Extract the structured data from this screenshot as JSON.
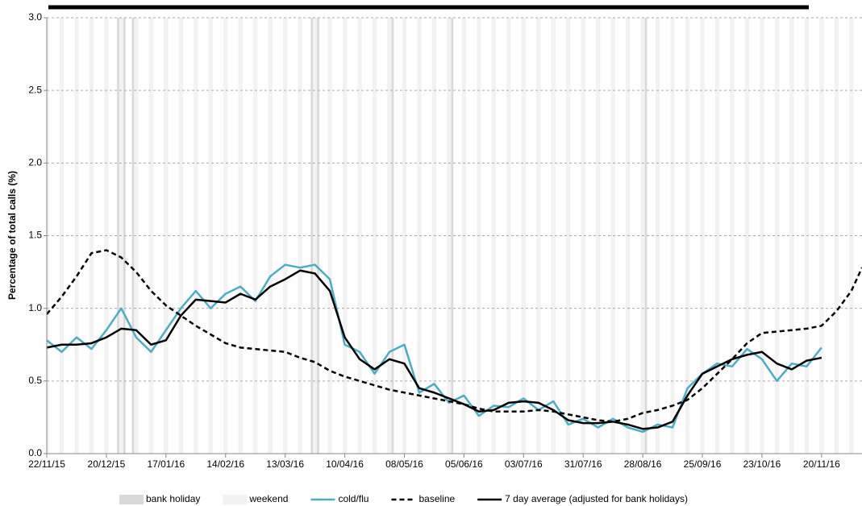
{
  "chart_data": {
    "type": "line",
    "y_label": "Percentage of total calls (%)",
    "x": [
      "22/11/15",
      "29/11/15",
      "06/12/15",
      "13/12/15",
      "20/12/15",
      "27/12/15",
      "03/01/16",
      "10/01/16",
      "17/01/16",
      "24/01/16",
      "31/01/16",
      "07/02/16",
      "14/02/16",
      "21/02/16",
      "28/02/16",
      "06/03/16",
      "13/03/16",
      "20/03/16",
      "27/03/16",
      "03/04/16",
      "10/04/16",
      "17/04/16",
      "24/04/16",
      "01/05/16",
      "08/05/16",
      "15/05/16",
      "22/05/16",
      "29/05/16",
      "05/06/16",
      "12/06/16",
      "19/06/16",
      "26/06/16",
      "03/07/16",
      "10/07/16",
      "17/07/16",
      "24/07/16",
      "31/07/16",
      "07/08/16",
      "14/08/16",
      "21/08/16",
      "28/08/16",
      "04/09/16",
      "11/09/16",
      "18/09/16",
      "25/09/16",
      "02/10/16",
      "09/10/16",
      "16/10/16",
      "23/10/16",
      "30/10/16",
      "06/11/16",
      "13/11/16",
      "20/11/16",
      "27/11/16",
      "04/12/16",
      "09/12/16"
    ],
    "series": [
      {
        "name": "cold/flu",
        "color": "#4bacc6",
        "style": "solid",
        "width": 2.5,
        "values": [
          0.78,
          0.7,
          0.8,
          0.72,
          0.85,
          1.0,
          0.8,
          0.7,
          0.85,
          1.0,
          1.12,
          1.0,
          1.1,
          1.15,
          1.05,
          1.22,
          1.3,
          1.28,
          1.3,
          1.2,
          0.75,
          0.7,
          0.55,
          0.7,
          0.75,
          0.42,
          0.48,
          0.35,
          0.4,
          0.26,
          0.33,
          0.32,
          0.38,
          0.3,
          0.36,
          0.2,
          0.24,
          0.18,
          0.24,
          0.18,
          0.15,
          0.2,
          0.18,
          0.45,
          0.55,
          0.62,
          0.6,
          0.72,
          0.65,
          0.5,
          0.62,
          0.6,
          0.73,
          null,
          null,
          null
        ]
      },
      {
        "name": "baseline",
        "color": "#000000",
        "style": "dashed",
        "width": 2.5,
        "values": [
          0.96,
          1.08,
          1.22,
          1.38,
          1.4,
          1.35,
          1.25,
          1.12,
          1.02,
          0.95,
          0.88,
          0.82,
          0.76,
          0.73,
          0.72,
          0.71,
          0.7,
          0.66,
          0.63,
          0.57,
          0.53,
          0.5,
          0.47,
          0.44,
          0.42,
          0.4,
          0.38,
          0.36,
          0.34,
          0.31,
          0.29,
          0.29,
          0.29,
          0.3,
          0.29,
          0.27,
          0.25,
          0.23,
          0.22,
          0.24,
          0.28,
          0.3,
          0.33,
          0.37,
          0.45,
          0.55,
          0.65,
          0.76,
          0.83,
          0.84,
          0.85,
          0.86,
          0.88,
          0.98,
          1.12,
          1.28
        ]
      },
      {
        "name": "7 day average (adjusted for bank holidays)",
        "color": "#000000",
        "style": "solid",
        "width": 2.5,
        "values": [
          0.73,
          0.75,
          0.75,
          0.76,
          0.8,
          0.86,
          0.85,
          0.75,
          0.78,
          0.95,
          1.06,
          1.05,
          1.04,
          1.1,
          1.06,
          1.15,
          1.2,
          1.26,
          1.24,
          1.12,
          0.8,
          0.65,
          0.58,
          0.65,
          0.62,
          0.45,
          0.42,
          0.38,
          0.34,
          0.29,
          0.3,
          0.35,
          0.36,
          0.35,
          0.3,
          0.23,
          0.21,
          0.21,
          0.22,
          0.2,
          0.17,
          0.18,
          0.22,
          0.4,
          0.55,
          0.6,
          0.65,
          0.68,
          0.7,
          0.62,
          0.58,
          0.64,
          0.66,
          null,
          null,
          null
        ]
      }
    ],
    "bank_holidays": {
      "name": "bank holiday",
      "color": "#d9d9d9",
      "dates": [
        "25/12/15",
        "28/12/15",
        "01/01/16",
        "25/03/16",
        "28/03/16",
        "02/05/16",
        "30/05/16",
        "29/08/16"
      ]
    },
    "weekends": {
      "name": "weekend",
      "color": "#f2f2f2"
    },
    "xlim": [
      "22/11/15",
      "09/12/16"
    ],
    "xticks": [
      "22/11/15",
      "20/12/15",
      "17/01/16",
      "14/02/16",
      "13/03/16",
      "10/04/16",
      "08/05/16",
      "05/06/16",
      "03/07/16",
      "31/07/16",
      "28/08/16",
      "25/09/16",
      "23/10/16",
      "20/11/16"
    ],
    "ylim": [
      0,
      3
    ],
    "yticks": [
      {
        "value": 0,
        "label": "0.0"
      },
      {
        "value": 0.5,
        "label": "0.5"
      },
      {
        "value": 1,
        "label": "1.0"
      },
      {
        "value": 1.5,
        "label": "1.5"
      },
      {
        "value": 2,
        "label": "2.0"
      },
      {
        "value": 2.5,
        "label": "2.5"
      },
      {
        "value": 3,
        "label": "3.0"
      }
    ],
    "grid": true
  }
}
